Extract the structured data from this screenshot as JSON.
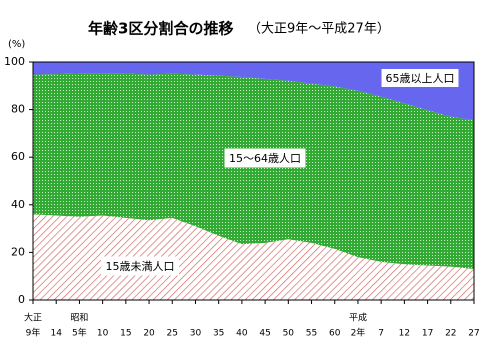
{
  "chart_data": {
    "type": "stacked-area",
    "title": "年齢3区分割合の推移",
    "subtitle": "（大正9年～平成27年）",
    "y_label": "(%)",
    "categories": [
      [
        "大正",
        "9年"
      ],
      [
        "14"
      ],
      [
        "昭和",
        "5年"
      ],
      [
        "10"
      ],
      [
        "15"
      ],
      [
        "20"
      ],
      [
        "25"
      ],
      [
        "30"
      ],
      [
        "35"
      ],
      [
        "40"
      ],
      [
        "45"
      ],
      [
        "50"
      ],
      [
        "55"
      ],
      [
        "60"
      ],
      [
        "平成",
        "2年"
      ],
      [
        "7"
      ],
      [
        "12"
      ],
      [
        "17"
      ],
      [
        "22"
      ],
      [
        "27"
      ]
    ],
    "series": [
      {
        "name": "15歳未満人口",
        "color": "#d06060",
        "values": [
          36,
          35.5,
          35,
          35.5,
          34.5,
          33.5,
          34.5,
          31,
          27,
          23.5,
          24,
          25.5,
          24,
          21.5,
          18,
          16,
          15,
          14.5,
          14,
          13
        ]
      },
      {
        "name": "15～64歳人口",
        "color": "#33aa33",
        "values": [
          58.7,
          59.4,
          60.2,
          59.8,
          60.7,
          61.2,
          60.6,
          63.7,
          67.3,
          70.2,
          68.9,
          66.6,
          66.9,
          68.2,
          69.9,
          69.4,
          67.6,
          65.3,
          63,
          62.5
        ]
      },
      {
        "name": "65歳以上人口",
        "color": "#6666ee",
        "values": [
          5.3,
          5.1,
          4.8,
          4.7,
          4.8,
          5.3,
          4.9,
          5.3,
          5.7,
          6.3,
          7.1,
          7.9,
          9.1,
          10.3,
          12.1,
          14.6,
          17.4,
          20.2,
          23,
          24.5
        ]
      }
    ],
    "ylim": [
      0,
      100
    ],
    "yticks": [
      0,
      20,
      40,
      60,
      80,
      100
    ]
  }
}
